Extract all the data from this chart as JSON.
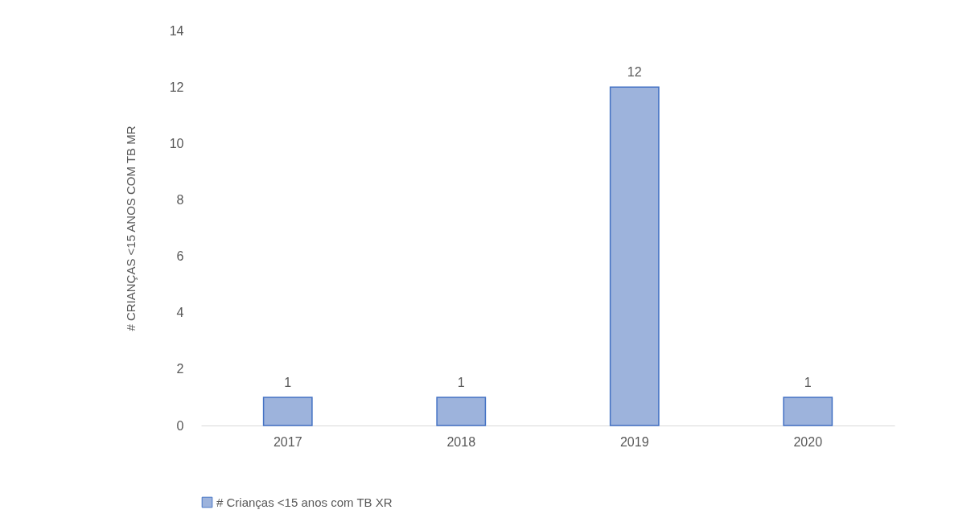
{
  "chart_data": {
    "type": "bar",
    "ylabel": "# CRIANÇAS <15 ANOS COM TB MR",
    "categories": [
      "2017",
      "2018",
      "2019",
      "2020"
    ],
    "series": [
      {
        "name": "# Crianças <15 anos com TB XR",
        "color": "#9db3dc",
        "values": [
          1,
          1,
          12,
          1
        ]
      }
    ],
    "ylim": [
      0,
      14
    ],
    "yticks": [
      0,
      2,
      4,
      6,
      8,
      10,
      12,
      14
    ],
    "grid": false,
    "legend": "bottom",
    "data_labels": true
  }
}
